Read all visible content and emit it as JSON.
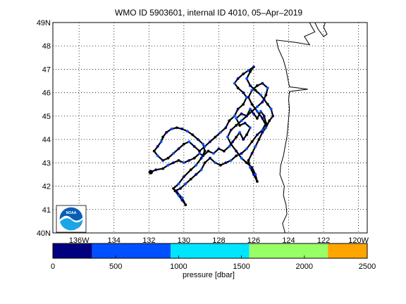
{
  "title": "WMO ID 5903601, internal ID 4010, 05–Apr–2019",
  "map": {
    "lon_range": [
      -137.5,
      -119.5
    ],
    "lat_range": [
      40,
      49
    ],
    "grid": "dotted",
    "lon_ticks": [
      {
        "value": -136,
        "label": "136W"
      },
      {
        "value": -134,
        "label": "134"
      },
      {
        "value": -132,
        "label": "132"
      },
      {
        "value": -130,
        "label": "130"
      },
      {
        "value": -128,
        "label": "128"
      },
      {
        "value": -126,
        "label": "126"
      },
      {
        "value": -124,
        "label": "124"
      },
      {
        "value": -122,
        "label": "122"
      },
      {
        "value": -120,
        "label": "120W"
      }
    ],
    "lat_ticks": [
      {
        "value": 40,
        "label": "40N"
      },
      {
        "value": 41,
        "label": "41"
      },
      {
        "value": 42,
        "label": "42"
      },
      {
        "value": 43,
        "label": "43"
      },
      {
        "value": 44,
        "label": "44"
      },
      {
        "value": 45,
        "label": "45"
      },
      {
        "value": 46,
        "label": "46"
      },
      {
        "value": 47,
        "label": "47"
      },
      {
        "value": 48,
        "label": "48"
      },
      {
        "value": 49,
        "label": "49N"
      }
    ],
    "coastline": [
      [
        -124.2,
        40.0
      ],
      [
        -124.35,
        40.4
      ],
      [
        -124.1,
        40.8
      ],
      [
        -124.15,
        41.2
      ],
      [
        -124.3,
        41.6
      ],
      [
        -124.25,
        42.0
      ],
      [
        -124.5,
        42.5
      ],
      [
        -124.45,
        42.9
      ],
      [
        -124.3,
        43.3
      ],
      [
        -124.2,
        43.7
      ],
      [
        -124.1,
        44.1
      ],
      [
        -124.05,
        44.5
      ],
      [
        -124.0,
        44.9
      ],
      [
        -123.95,
        45.3
      ],
      [
        -124.0,
        45.7
      ],
      [
        -123.95,
        46.05
      ],
      [
        -122.9,
        46.15
      ],
      [
        -123.95,
        46.25
      ],
      [
        -124.05,
        46.6
      ],
      [
        -124.15,
        47.0
      ],
      [
        -124.3,
        47.4
      ],
      [
        -124.6,
        47.9
      ],
      [
        -124.7,
        48.25
      ],
      [
        -123.6,
        48.15
      ],
      [
        -122.8,
        48.05
      ],
      [
        -123.1,
        48.4
      ],
      [
        -122.5,
        48.6
      ],
      [
        -122.7,
        48.85
      ],
      [
        -122.8,
        49.0
      ]
    ],
    "coastline_inlet": [
      [
        -122.5,
        49.0
      ],
      [
        -122.3,
        48.7
      ],
      [
        -122.0,
        48.4
      ],
      [
        -121.8,
        48.5
      ],
      [
        -122.0,
        48.8
      ],
      [
        -121.9,
        49.0
      ]
    ],
    "trajectory": [
      [
        -131.9,
        42.6
      ],
      [
        -131.6,
        42.7
      ],
      [
        -131.2,
        42.75
      ],
      [
        -130.9,
        42.9
      ],
      [
        -130.6,
        43.0
      ],
      [
        -130.3,
        43.1
      ],
      [
        -130.0,
        43.0
      ],
      [
        -129.7,
        43.1
      ],
      [
        -129.4,
        43.2
      ],
      [
        -129.1,
        43.4
      ],
      [
        -128.9,
        43.3
      ],
      [
        -128.6,
        43.5
      ],
      [
        -128.3,
        43.4
      ],
      [
        -128.0,
        43.6
      ],
      [
        -127.7,
        43.5
      ],
      [
        -127.4,
        43.7
      ],
      [
        -127.2,
        43.9
      ],
      [
        -127.0,
        44.1
      ],
      [
        -126.8,
        44.3
      ],
      [
        -126.6,
        44.0
      ],
      [
        -126.4,
        44.2
      ],
      [
        -126.2,
        44.5
      ],
      [
        -126.5,
        44.7
      ],
      [
        -126.8,
        44.6
      ],
      [
        -127.0,
        44.9
      ],
      [
        -126.7,
        45.1
      ],
      [
        -126.4,
        45.0
      ],
      [
        -126.2,
        45.3
      ],
      [
        -126.0,
        45.1
      ],
      [
        -125.8,
        44.9
      ],
      [
        -125.6,
        45.2
      ],
      [
        -125.4,
        45.0
      ],
      [
        -125.3,
        44.7
      ],
      [
        -125.5,
        44.4
      ],
      [
        -125.8,
        44.2
      ],
      [
        -126.1,
        43.9
      ],
      [
        -126.4,
        43.6
      ],
      [
        -126.7,
        43.4
      ],
      [
        -127.0,
        43.3
      ],
      [
        -127.3,
        43.1
      ],
      [
        -127.6,
        43.0
      ],
      [
        -127.9,
        42.9
      ],
      [
        -128.2,
        43.0
      ],
      [
        -128.5,
        43.2
      ],
      [
        -128.8,
        43.0
      ],
      [
        -129.0,
        42.7
      ],
      [
        -129.3,
        42.5
      ],
      [
        -129.6,
        42.3
      ],
      [
        -129.9,
        42.1
      ],
      [
        -130.2,
        41.9
      ],
      [
        -130.5,
        41.8
      ],
      [
        -130.3,
        41.6
      ],
      [
        -130.1,
        41.4
      ],
      [
        -129.9,
        41.2
      ],
      [
        -130.1,
        41.5
      ],
      [
        -130.4,
        41.75
      ],
      [
        -130.6,
        41.9
      ],
      [
        -130.3,
        42.1
      ],
      [
        -130.0,
        42.4
      ],
      [
        -129.6,
        42.7
      ],
      [
        -129.3,
        42.9
      ],
      [
        -129.0,
        43.2
      ],
      [
        -128.8,
        43.5
      ],
      [
        -128.9,
        43.8
      ],
      [
        -129.2,
        44.0
      ],
      [
        -129.5,
        44.2
      ],
      [
        -129.8,
        44.35
      ],
      [
        -130.1,
        44.45
      ],
      [
        -130.4,
        44.5
      ],
      [
        -130.7,
        44.45
      ],
      [
        -131.0,
        44.3
      ],
      [
        -131.2,
        44.1
      ],
      [
        -131.3,
        43.9
      ],
      [
        -131.5,
        43.7
      ],
      [
        -131.7,
        43.5
      ],
      [
        -131.5,
        43.3
      ],
      [
        -131.2,
        43.1
      ],
      [
        -130.9,
        43.2
      ],
      [
        -130.6,
        43.4
      ],
      [
        -130.3,
        43.6
      ],
      [
        -130.0,
        43.8
      ],
      [
        -129.7,
        43.9
      ],
      [
        -129.4,
        43.7
      ],
      [
        -129.1,
        43.5
      ],
      [
        -128.8,
        43.7
      ],
      [
        -128.5,
        43.9
      ],
      [
        -128.2,
        44.1
      ],
      [
        -127.9,
        44.3
      ],
      [
        -127.6,
        44.5
      ],
      [
        -127.4,
        44.8
      ],
      [
        -127.1,
        45.0
      ],
      [
        -126.9,
        45.3
      ],
      [
        -126.6,
        45.5
      ],
      [
        -126.4,
        45.8
      ],
      [
        -126.6,
        46.0
      ],
      [
        -126.9,
        46.2
      ],
      [
        -127.1,
        46.4
      ],
      [
        -126.9,
        46.6
      ],
      [
        -126.6,
        46.8
      ],
      [
        -126.3,
        46.95
      ],
      [
        -126.0,
        47.1
      ],
      [
        -126.2,
        46.9
      ],
      [
        -126.4,
        46.6
      ],
      [
        -126.2,
        46.3
      ],
      [
        -125.9,
        46.1
      ],
      [
        -125.6,
        45.9
      ],
      [
        -125.4,
        45.7
      ],
      [
        -125.2,
        45.5
      ],
      [
        -125.0,
        45.3
      ],
      [
        -124.9,
        45.0
      ],
      [
        -125.1,
        44.8
      ],
      [
        -125.3,
        44.5
      ],
      [
        -125.5,
        44.3
      ],
      [
        -125.7,
        44.0
      ],
      [
        -125.9,
        43.7
      ],
      [
        -126.1,
        43.4
      ],
      [
        -126.3,
        43.1
      ],
      [
        -126.2,
        42.8
      ],
      [
        -126.0,
        42.5
      ],
      [
        -125.8,
        42.2
      ],
      [
        -125.9,
        42.5
      ],
      [
        -126.1,
        42.8
      ],
      [
        -126.4,
        43.0
      ],
      [
        -126.7,
        43.2
      ],
      [
        -127.0,
        43.5
      ],
      [
        -127.3,
        43.8
      ],
      [
        -127.5,
        44.1
      ],
      [
        -127.3,
        44.4
      ],
      [
        -127.0,
        44.6
      ],
      [
        -126.7,
        44.8
      ],
      [
        -126.4,
        45.0
      ],
      [
        -126.1,
        45.2
      ],
      [
        -125.8,
        45.4
      ],
      [
        -125.5,
        45.6
      ],
      [
        -125.3,
        45.9
      ],
      [
        -125.2,
        46.2
      ],
      [
        -125.5,
        46.4
      ],
      [
        -125.8,
        46.3
      ],
      [
        -126.1,
        46.1
      ],
      [
        -126.3,
        45.8
      ],
      [
        -126.1,
        45.5
      ],
      [
        -125.8,
        45.2
      ],
      [
        -125.5,
        44.9
      ],
      [
        -125.3,
        44.6
      ]
    ]
  },
  "colorbar": {
    "label": "pressure [dbar]",
    "range": [
      0,
      2500
    ],
    "ticks": [
      {
        "value": 0,
        "label": "0"
      },
      {
        "value": 500,
        "label": "500"
      },
      {
        "value": 1000,
        "label": "1000"
      },
      {
        "value": 1500,
        "label": "1500"
      },
      {
        "value": 2000,
        "label": "2000"
      },
      {
        "value": 2500,
        "label": "2500"
      }
    ],
    "bins": [
      {
        "from": 0,
        "to": 312,
        "color": "#000080"
      },
      {
        "from": 312,
        "to": 937,
        "color": "#0050ff"
      },
      {
        "from": 937,
        "to": 1562,
        "color": "#00e5ff"
      },
      {
        "from": 1562,
        "to": 2187,
        "color": "#99ff66"
      },
      {
        "from": 2187,
        "to": 2500,
        "color": "#ffa500"
      }
    ]
  },
  "logo_text": "NOAA"
}
